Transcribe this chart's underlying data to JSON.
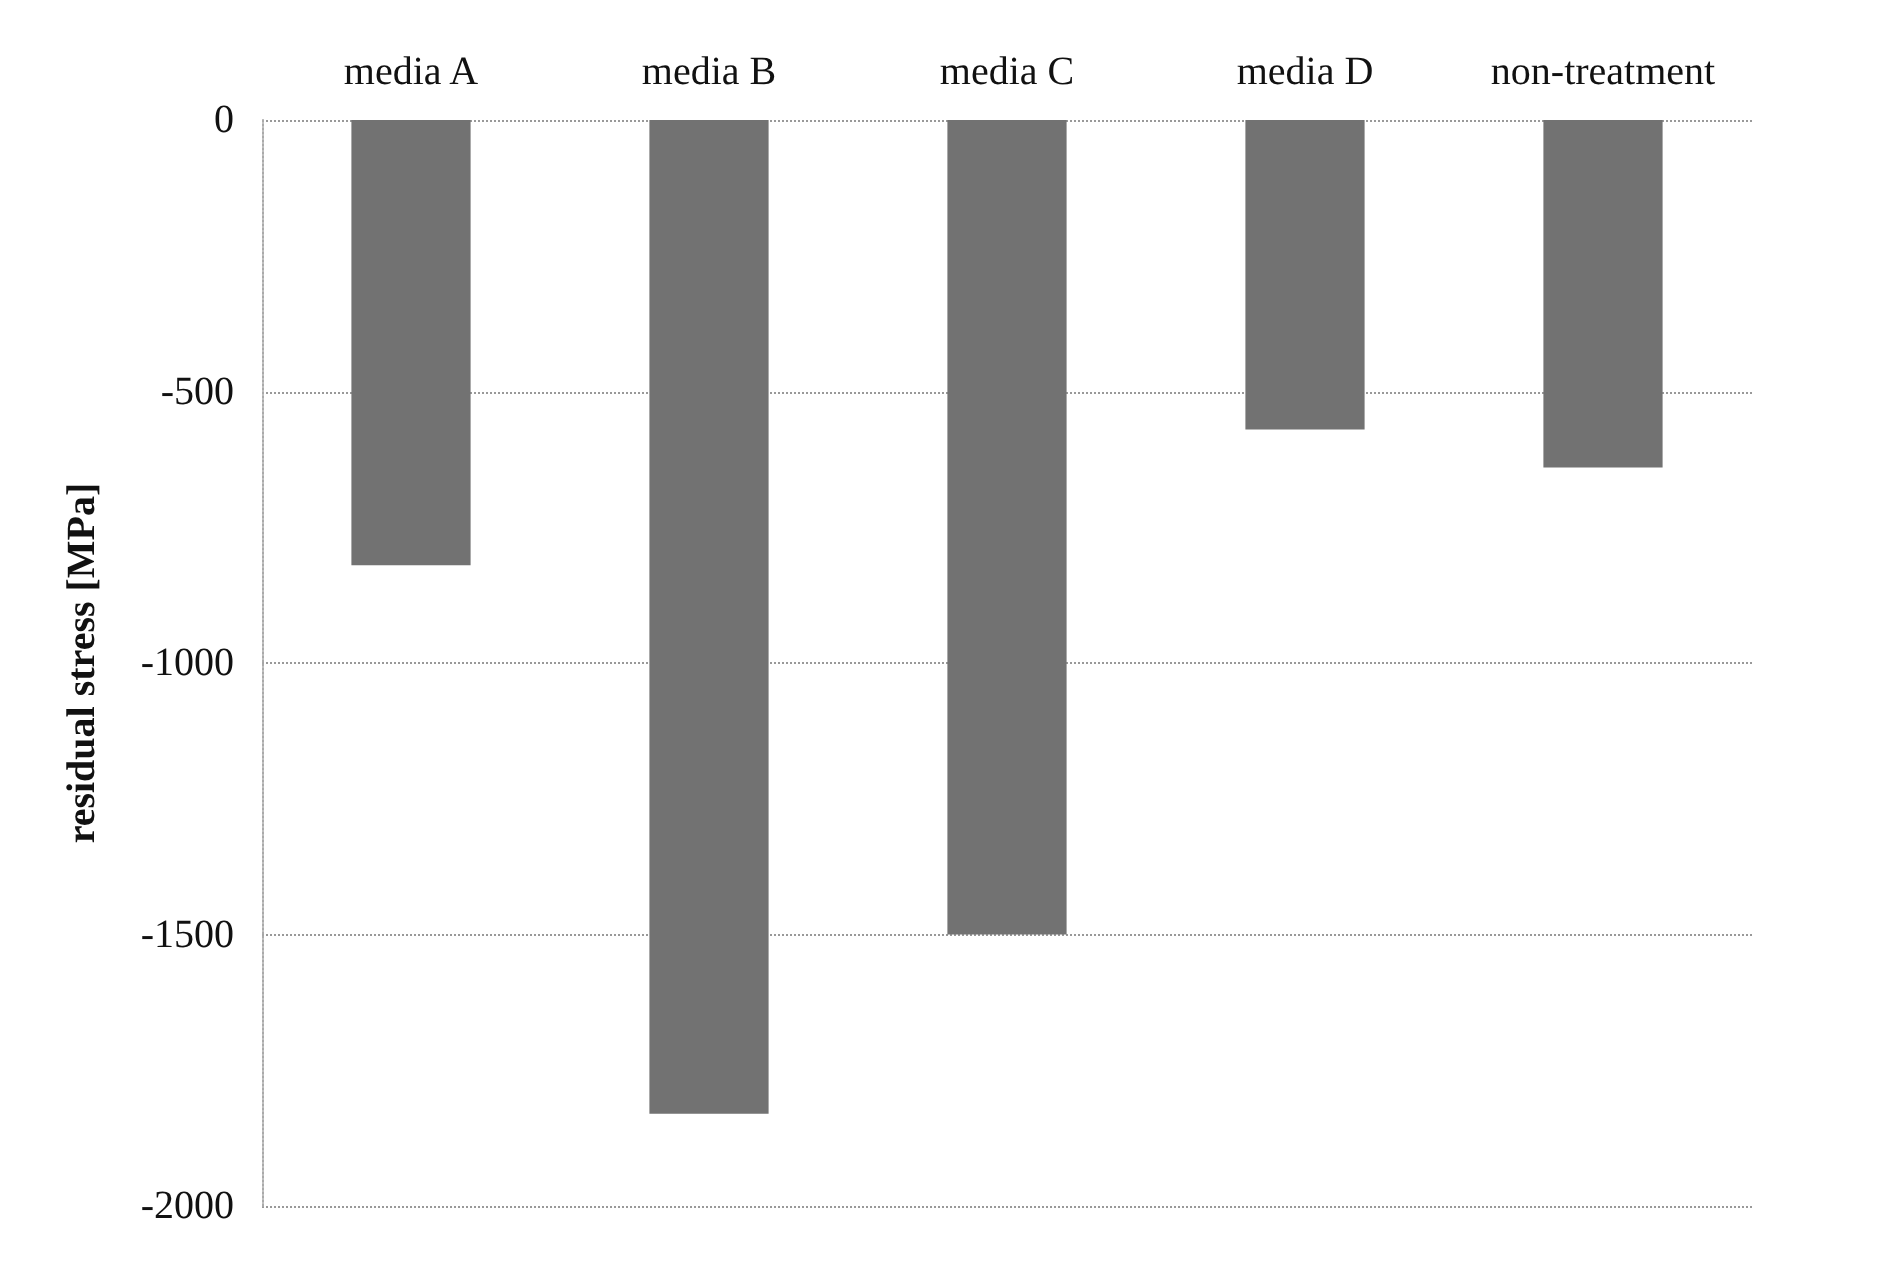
{
  "chart_data": {
    "type": "bar",
    "ylabel": "residual stress [MPa]",
    "categories": [
      "media A",
      "media B",
      "media C",
      "media D",
      "non-treatment"
    ],
    "values": [
      -820,
      -1830,
      -1500,
      -570,
      -640
    ],
    "color": "#727272",
    "ylim": [
      -2000,
      0
    ],
    "yticks": [
      0,
      -500,
      -1000,
      -1500,
      -2000
    ],
    "grid": "y"
  }
}
